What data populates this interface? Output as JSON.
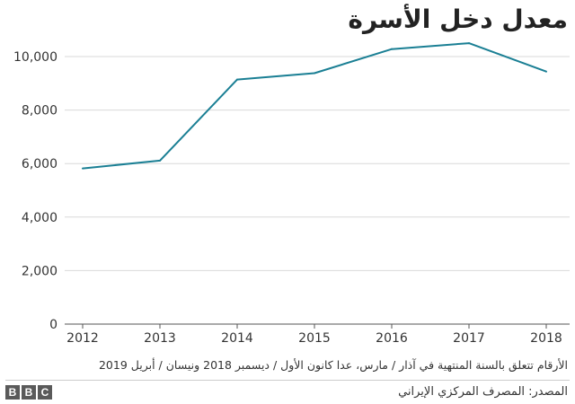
{
  "header": {
    "title": "معدل دخل الأسرة"
  },
  "chart_data": {
    "type": "line",
    "title": "معدل دخل الأسرة",
    "xlabel": "",
    "ylabel": "",
    "x": [
      "2012",
      "2013",
      "2014",
      "2015",
      "2016",
      "2017",
      "2018"
    ],
    "series": [
      {
        "values": [
          5820,
          6110,
          9140,
          9380,
          10280,
          10500,
          9440
        ]
      }
    ],
    "yticks": [
      0,
      2000,
      4000,
      6000,
      8000,
      10000
    ],
    "ytick_labels": [
      "0",
      "2,000",
      "4,000",
      "6,000",
      "8,000",
      "10,000"
    ],
    "ylim": [
      0,
      10500
    ],
    "grid": true,
    "line_color": "#1a7f94"
  },
  "footer": {
    "note": "الأرقام تتعلق بالسنة المنتهية في آذار / مارس، عدا كانون الأول / ديسمبر 2018 ونيسان / أبريل 2019",
    "source": "المصدر: المصرف المركزي الإيراني",
    "logo_letters": [
      "B",
      "B",
      "C"
    ]
  }
}
